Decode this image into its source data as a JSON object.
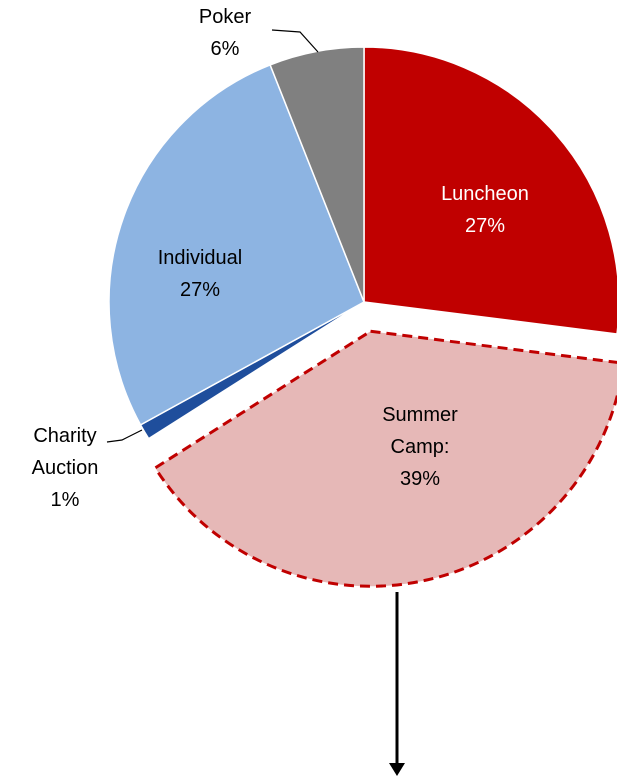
{
  "chart_data": {
    "type": "pie",
    "categories": [
      "Luncheon",
      "Summer Camp:",
      "Charity Auction",
      "Individual",
      "Poker"
    ],
    "values": [
      27,
      39,
      1,
      27,
      6
    ],
    "value_labels": [
      "27%",
      "39%",
      "1%",
      "27%",
      "6%"
    ],
    "colors": [
      "#c00000",
      "#e6b8b7",
      "#1f4e9c",
      "#8db4e2",
      "#808080"
    ],
    "exploded": [
      false,
      true,
      false,
      false,
      false
    ]
  }
}
